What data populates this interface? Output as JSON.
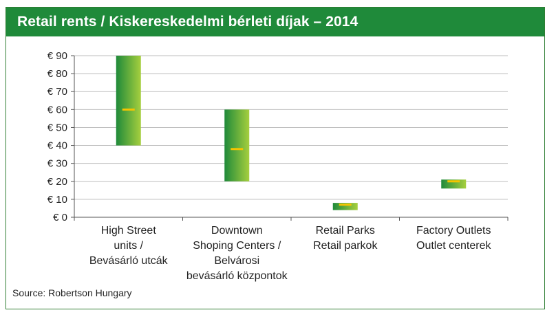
{
  "header": {
    "title": "Retail rents / Kiskereskedelmi bérleti díjak – 2014"
  },
  "source": "Source: Robertson Hungary",
  "colors": {
    "header": "#1f8a3a",
    "bar_dark": "#1f8a3a",
    "bar_light": "#a6cf3e",
    "median": "#f5c400"
  },
  "chart_data": {
    "type": "bar",
    "subtype": "floating-range",
    "categories": [
      [
        "High Street",
        "units /",
        "Bevásárló utcák"
      ],
      [
        "Downtown",
        "Shoping Centers /",
        "Belvárosi",
        "bevásárló központok"
      ],
      [
        "Retail Parks",
        "Retail parkok"
      ],
      [
        "Factory Outlets",
        "Outlet centerek"
      ]
    ],
    "series": [
      {
        "low": 40,
        "high": 90,
        "mid": 60
      },
      {
        "low": 20,
        "high": 60,
        "mid": 38
      },
      {
        "low": 4,
        "high": 8,
        "mid": 7
      },
      {
        "low": 16,
        "high": 21,
        "mid": 20
      }
    ],
    "yticks": [
      "€ 90",
      "€ 80",
      "€ 70",
      "€ 60",
      "€ 50",
      "€ 40",
      "€ 30",
      "€ 20",
      "€ 10",
      "€ 0"
    ],
    "ylim": [
      0,
      90
    ],
    "grid": true,
    "legend": "none"
  }
}
